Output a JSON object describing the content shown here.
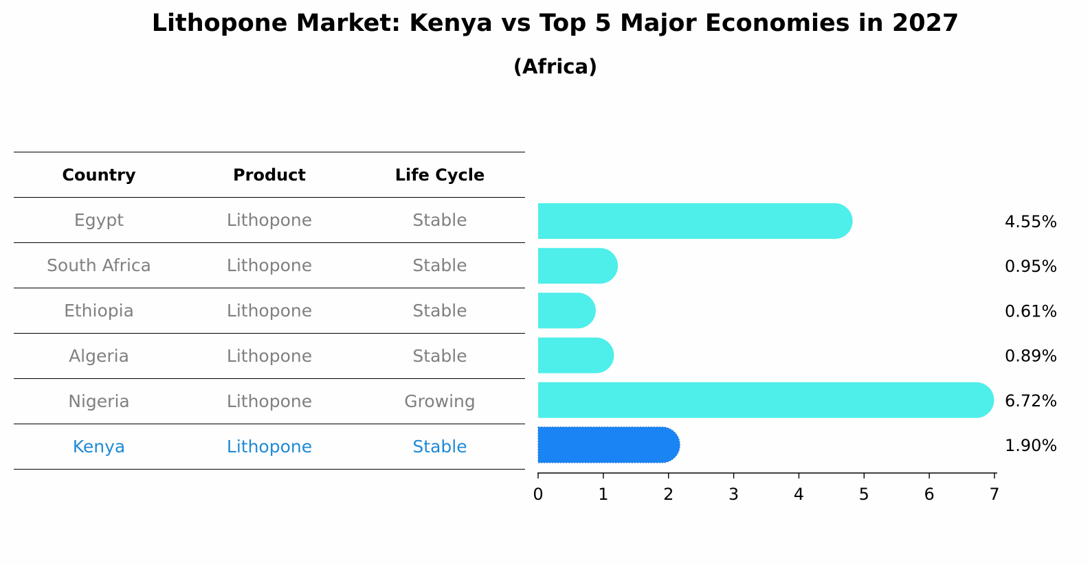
{
  "title": "Lithopone Market: Kenya vs Top 5 Major Economies in 2027",
  "subtitle": "(Africa)",
  "table": {
    "headers": [
      "Country",
      "Product",
      "Life Cycle"
    ],
    "rows": [
      {
        "country": "Egypt",
        "product": "Lithopone",
        "life_cycle": "Stable"
      },
      {
        "country": "South Africa",
        "product": "Lithopone",
        "life_cycle": "Stable"
      },
      {
        "country": "Ethiopia",
        "product": "Lithopone",
        "life_cycle": "Stable"
      },
      {
        "country": "Algeria",
        "product": "Lithopone",
        "life_cycle": "Stable"
      },
      {
        "country": "Nigeria",
        "product": "Lithopone",
        "life_cycle": "Growing"
      },
      {
        "country": "Kenya",
        "product": "Lithopone",
        "life_cycle": "Stable"
      }
    ]
  },
  "chart_data": {
    "type": "bar",
    "orientation": "horizontal",
    "categories": [
      "Egypt",
      "South Africa",
      "Ethiopia",
      "Algeria",
      "Nigeria",
      "Kenya"
    ],
    "values": [
      4.55,
      0.95,
      0.61,
      0.89,
      6.72,
      1.9
    ],
    "value_labels": [
      "4.55%",
      "0.95%",
      "0.61%",
      "0.89%",
      "6.72%",
      "1.90%"
    ],
    "xlim": [
      0,
      7
    ],
    "xticks": [
      0,
      1,
      2,
      3,
      4,
      5,
      6,
      7
    ],
    "highlight": "Kenya",
    "colors": {
      "default": "#4eeeea",
      "highlight": "#1a84f5",
      "highlight_text": "#1f8ad6",
      "muted_text": "#808080"
    },
    "grid": false
  }
}
